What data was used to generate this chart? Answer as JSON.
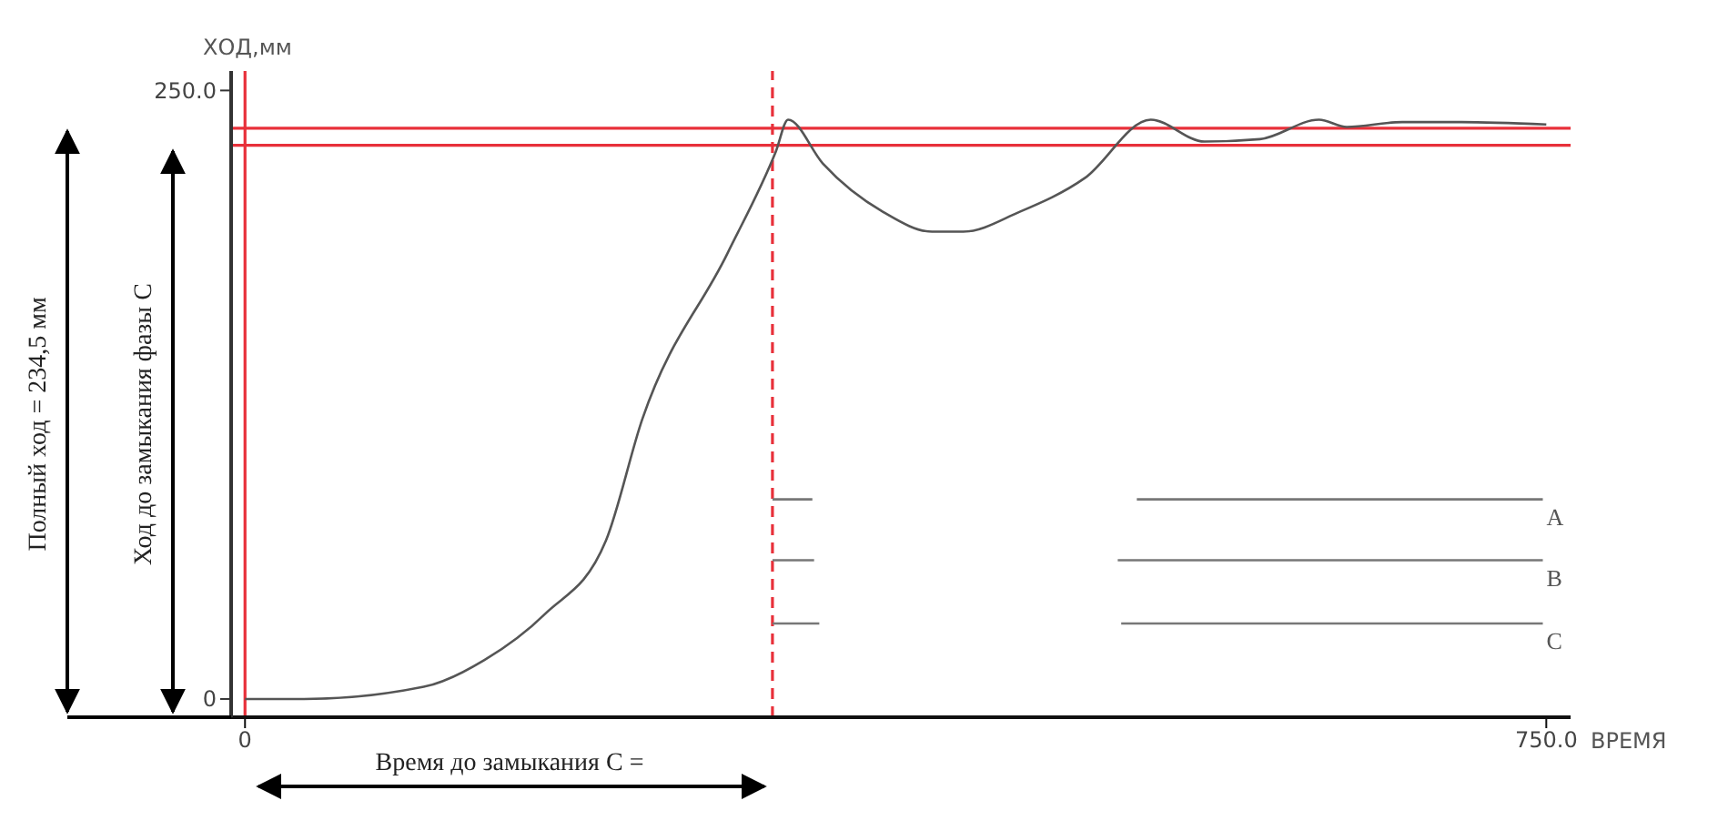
{
  "chart_data": {
    "type": "line",
    "xlabel": "ВРЕМЯ",
    "ylabel": "ХОД,мм",
    "annotations": [
      "Полный ход = 234,5 мм",
      "Ход до замыкания фазы С",
      "Время до замыкания С ="
    ],
    "xlim": [
      -8,
      764
    ],
    "xticks": [
      0,
      {
        "value": 750,
        "label": "750.0"
      }
    ],
    "ylim": [
      -7.5,
      258
    ],
    "yticks": [
      0,
      {
        "value": 250,
        "label": "250.0"
      }
    ],
    "series": [
      {
        "color": "#555555",
        "x": [
          0,
          34,
          103,
          138,
          173,
          208,
          229,
          278,
          306,
          313,
          333,
          368,
          396,
          414,
          446,
          484,
          522,
          553,
          585,
          619,
          635,
          667,
          701,
          750
        ],
        "values": [
          0,
          0,
          5,
          16,
          35,
          65,
          115,
          183,
          225,
          238,
          220,
          200,
          192,
          192,
          200,
          214,
          238,
          229,
          230,
          238,
          235,
          237,
          237,
          236
        ]
      },
      {
        "name": "A",
        "color": "#777777",
        "x": [
          304,
          327,
          410,
          514,
          748
        ],
        "values": [
          82,
          82,
          null,
          82,
          82
        ]
      },
      {
        "name": "B",
        "color": "#777777",
        "x": [
          304,
          328,
          410,
          503,
          748
        ],
        "values": [
          57,
          57,
          null,
          57,
          57
        ]
      },
      {
        "name": "C",
        "color": "#777777",
        "x": [
          304,
          331,
          410,
          505,
          748
        ],
        "values": [
          31,
          31,
          null,
          31,
          31
        ]
      }
    ],
    "ref_lines": [
      {
        "axis": "y",
        "value": 234.5,
        "color": "#e8303a"
      },
      {
        "axis": "y",
        "value": 227.5,
        "color": "#e8303a"
      },
      {
        "axis": "x",
        "value": 304,
        "color": "#e8303a",
        "line_style": "dashed"
      },
      {
        "axis": "x",
        "value": 0,
        "color": "#e8303a"
      }
    ],
    "grid": false
  }
}
